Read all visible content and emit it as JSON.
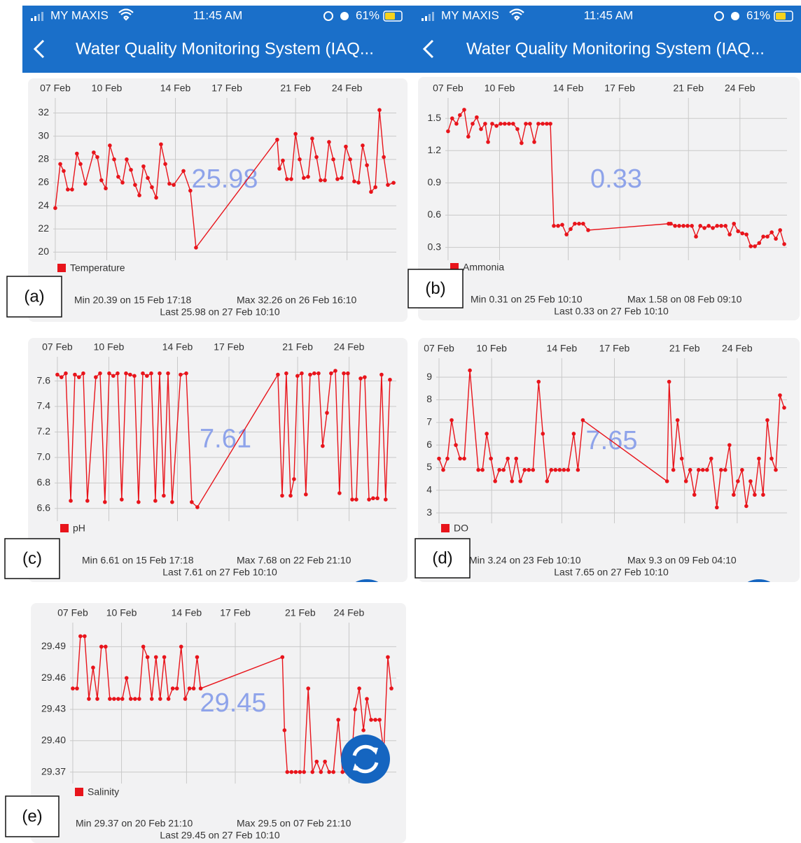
{
  "screens": [
    {
      "status": {
        "carrier": "MY MAXIS",
        "time": "11:45 AM",
        "battery": "61%"
      },
      "title": "Water Quality Monitoring System (IAQ..."
    },
    {
      "status": {
        "carrier": "MY MAXIS",
        "time": "11:45 AM",
        "battery": "61%"
      },
      "title": "Water Quality Monitoring System (IAQ..."
    }
  ],
  "panel_labels": [
    "(a)",
    "(b)",
    "(c)",
    "(d)",
    "(e)"
  ],
  "chart_data": [
    {
      "type": "line",
      "grid": true,
      "x": [
        7.0,
        7.29,
        7.49,
        7.73,
        7.98,
        8.26,
        8.47,
        8.75,
        9.24,
        9.45,
        9.69,
        9.94,
        10.18,
        10.43,
        10.67,
        10.92,
        11.16,
        11.41,
        11.65,
        11.9,
        12.14,
        12.39,
        12.63,
        12.88,
        13.16,
        13.41,
        13.65,
        13.9,
        14.47,
        14.87,
        15.2,
        19.93,
        20.06,
        20.26,
        20.5,
        20.75,
        21.0,
        21.24,
        21.48,
        21.73,
        21.97,
        22.22,
        22.46,
        22.71,
        22.95,
        23.2,
        23.44,
        23.69,
        23.93,
        24.18,
        24.42,
        24.67,
        24.91,
        25.16,
        25.4,
        25.65,
        25.89,
        26.14,
        26.38,
        26.71
      ],
      "series": [
        {
          "name": "Temperature",
          "color": "#e8141b",
          "values": [
            23.8,
            27.6,
            27.0,
            25.4,
            25.4,
            28.5,
            27.6,
            25.9,
            28.6,
            28.2,
            26.2,
            25.5,
            29.2,
            28.0,
            26.5,
            26.0,
            28.0,
            27.1,
            25.8,
            24.9,
            27.4,
            26.4,
            25.6,
            24.7,
            29.3,
            27.6,
            25.9,
            25.8,
            27.0,
            25.3,
            20.39,
            29.7,
            27.2,
            27.9,
            26.3,
            26.3,
            30.2,
            28.0,
            26.4,
            26.5,
            29.8,
            28.2,
            26.2,
            26.2,
            29.5,
            28.0,
            26.3,
            26.4,
            29.1,
            28.0,
            26.1,
            26.0,
            29.2,
            27.5,
            25.2,
            25.6,
            32.26,
            28.2,
            25.8,
            25.98
          ]
        }
      ],
      "xlim": [
        6.88,
        26.87
      ],
      "xticks": [
        {
          "value": 7,
          "label": "07 Feb"
        },
        {
          "value": 10,
          "label": "10 Feb"
        },
        {
          "value": 14,
          "label": "14 Feb"
        },
        {
          "value": 17,
          "label": "17 Feb"
        },
        {
          "value": 21,
          "label": "21 Feb"
        },
        {
          "value": 24,
          "label": "24 Feb"
        }
      ],
      "ylim": [
        19.3,
        33.3
      ],
      "yticks": [
        20,
        22,
        24,
        26,
        28,
        30,
        32
      ],
      "current": 25.98,
      "stats": {
        "min": "Min 20.39 on 15 Feb 17:18",
        "max": "Max 32.26 on 26 Feb 16:10",
        "last": "Last 25.98 on 27 Feb 10:10"
      }
    },
    {
      "type": "line",
      "grid": true,
      "x": [
        7.0,
        7.24,
        7.49,
        7.69,
        7.94,
        8.18,
        8.43,
        8.67,
        8.92,
        9.16,
        9.33,
        9.57,
        9.82,
        10.06,
        10.3,
        10.55,
        10.79,
        11.04,
        11.28,
        11.53,
        11.77,
        12.02,
        12.26,
        12.51,
        12.75,
        12.96,
        13.16,
        13.41,
        13.65,
        13.9,
        14.14,
        14.38,
        14.63,
        14.87,
        15.16,
        19.85,
        19.97,
        20.22,
        20.46,
        20.71,
        20.95,
        21.2,
        21.44,
        21.69,
        21.93,
        22.18,
        22.42,
        22.67,
        22.91,
        23.16,
        23.4,
        23.65,
        23.89,
        24.14,
        24.38,
        24.63,
        24.87,
        25.12,
        25.36,
        25.6,
        25.85,
        26.09,
        26.34,
        26.58
      ],
      "series": [
        {
          "name": "Ammonia",
          "color": "#e8141b",
          "values": [
            1.38,
            1.5,
            1.45,
            1.53,
            1.58,
            1.33,
            1.45,
            1.51,
            1.4,
            1.45,
            1.28,
            1.45,
            1.43,
            1.45,
            1.45,
            1.45,
            1.45,
            1.4,
            1.27,
            1.45,
            1.45,
            1.28,
            1.45,
            1.45,
            1.45,
            1.45,
            0.5,
            0.5,
            0.51,
            0.42,
            0.47,
            0.52,
            0.52,
            0.52,
            0.46,
            0.52,
            0.52,
            0.5,
            0.5,
            0.5,
            0.5,
            0.5,
            0.4,
            0.5,
            0.48,
            0.5,
            0.48,
            0.5,
            0.5,
            0.5,
            0.42,
            0.52,
            0.45,
            0.43,
            0.42,
            0.31,
            0.31,
            0.34,
            0.4,
            0.4,
            0.44,
            0.38,
            0.46,
            0.33
          ]
        }
      ],
      "xlim": [
        6.84,
        26.74
      ],
      "xticks": [
        {
          "value": 7,
          "label": "07 Feb"
        },
        {
          "value": 10,
          "label": "10 Feb"
        },
        {
          "value": 14,
          "label": "14 Feb"
        },
        {
          "value": 17,
          "label": "17 Feb"
        },
        {
          "value": 21,
          "label": "21 Feb"
        },
        {
          "value": 24,
          "label": "24 Feb"
        }
      ],
      "ylim": [
        0.18,
        1.69
      ],
      "yticks": [
        0.3,
        0.6,
        0.9,
        1.2,
        1.5
      ],
      "current": 0.33,
      "stats": {
        "min": "Min 0.31 on 25 Feb 10:10",
        "max": "Max 1.58 on 08 Feb 09:10",
        "last": "Last 0.33 on 27 Feb 10:10"
      }
    },
    {
      "type": "line",
      "grid": true,
      "x": [
        7.0,
        7.24,
        7.49,
        7.78,
        8.02,
        8.26,
        8.51,
        8.75,
        9.24,
        9.49,
        9.77,
        10.02,
        10.26,
        10.51,
        10.75,
        11.0,
        11.24,
        11.49,
        11.73,
        11.98,
        12.22,
        12.47,
        12.71,
        12.96,
        13.2,
        13.45,
        13.69,
        14.18,
        14.51,
        14.83,
        15.16,
        19.85,
        20.1,
        20.34,
        20.59,
        20.79,
        20.99,
        21.24,
        21.48,
        21.73,
        21.97,
        22.22,
        22.46,
        22.71,
        22.95,
        23.2,
        23.44,
        23.69,
        23.93,
        24.18,
        24.42,
        24.67,
        24.91,
        25.16,
        25.4,
        25.65,
        25.89,
        26.13,
        26.38
      ],
      "series": [
        {
          "name": "pH",
          "color": "#e8141b",
          "values": [
            7.65,
            7.63,
            7.66,
            6.66,
            7.65,
            7.63,
            7.66,
            6.66,
            7.63,
            7.66,
            6.65,
            7.66,
            7.64,
            7.66,
            6.67,
            7.66,
            7.65,
            7.64,
            6.65,
            7.66,
            7.64,
            7.66,
            6.66,
            7.66,
            6.7,
            7.66,
            6.65,
            7.65,
            7.66,
            6.65,
            6.61,
            7.65,
            6.7,
            7.66,
            6.7,
            6.83,
            7.64,
            7.66,
            6.71,
            7.65,
            7.66,
            7.66,
            7.09,
            7.35,
            7.66,
            7.68,
            6.72,
            7.66,
            7.66,
            6.67,
            6.67,
            7.62,
            7.63,
            6.67,
            6.68,
            6.68,
            7.65,
            6.67,
            7.61
          ]
        }
      ],
      "xlim": [
        6.84,
        26.75
      ],
      "xticks": [
        {
          "value": 7,
          "label": "07 Feb"
        },
        {
          "value": 10,
          "label": "10 Feb"
        },
        {
          "value": 14,
          "label": "14 Feb"
        },
        {
          "value": 17,
          "label": "17 Feb"
        },
        {
          "value": 21,
          "label": "21 Feb"
        },
        {
          "value": 24,
          "label": "24 Feb"
        }
      ],
      "ylim": [
        6.5,
        7.79
      ],
      "yticks": [
        6.6,
        6.8,
        {
          "value": 7,
          "label": "7.0"
        },
        7.2,
        7.4,
        7.6
      ],
      "current": 7.61,
      "stats": {
        "min": "Min 6.61 on 15 Feb 17:18",
        "max": "Max 7.68 on 22 Feb 21:10",
        "last": "Last 7.61 on 27 Feb 10:10"
      }
    },
    {
      "type": "line",
      "grid": true,
      "x": [
        7,
        7.24,
        7.48,
        7.72,
        7.96,
        8.2,
        8.44,
        8.76,
        9.24,
        9.48,
        9.72,
        9.96,
        10.2,
        10.44,
        10.68,
        10.92,
        11.16,
        11.4,
        11.64,
        11.88,
        12.12,
        12.36,
        12.68,
        12.92,
        13.16,
        13.4,
        13.64,
        13.88,
        14.12,
        14.36,
        14.68,
        14.92,
        15.2,
        20.0,
        20.12,
        20.36,
        20.6,
        20.84,
        21.08,
        21.32,
        21.56,
        21.8,
        22.04,
        22.28,
        22.52,
        22.84,
        23.08,
        23.32,
        23.56,
        23.8,
        24.04,
        24.28,
        24.52,
        24.76,
        25.0,
        25.24,
        25.48,
        25.72,
        25.96,
        26.2,
        26.44,
        26.68
      ],
      "series": [
        {
          "name": "DO",
          "color": "#e8141b",
          "values": [
            5.4,
            4.9,
            5.4,
            7.1,
            6.0,
            5.4,
            5.4,
            9.3,
            4.9,
            4.9,
            6.5,
            5.4,
            4.4,
            4.9,
            4.9,
            5.4,
            4.4,
            5.4,
            4.4,
            4.9,
            4.9,
            4.9,
            8.8,
            6.5,
            4.4,
            4.9,
            4.9,
            4.9,
            4.9,
            4.9,
            6.5,
            4.9,
            7.1,
            4.4,
            8.8,
            4.9,
            7.1,
            5.4,
            4.4,
            4.9,
            3.8,
            4.9,
            4.9,
            4.9,
            5.4,
            3.24,
            4.9,
            4.9,
            6.0,
            3.8,
            4.4,
            4.9,
            3.3,
            4.4,
            3.8,
            5.4,
            3.8,
            7.1,
            5.4,
            4.9,
            8.2,
            7.65
          ]
        }
      ],
      "xlim": [
        6.84,
        26.84
      ],
      "xticks": [
        {
          "value": 7,
          "label": "07 Feb"
        },
        {
          "value": 10,
          "label": "10 Feb"
        },
        {
          "value": 14,
          "label": "14 Feb"
        },
        {
          "value": 17,
          "label": "17 Feb"
        },
        {
          "value": 21,
          "label": "21 Feb"
        },
        {
          "value": 24,
          "label": "24 Feb"
        }
      ],
      "ylim": [
        2.54,
        9.84
      ],
      "yticks": [
        3,
        4,
        5,
        6,
        7,
        8,
        9
      ],
      "current": 7.65,
      "stats": {
        "min": "Min 3.24 on 23 Feb 10:10",
        "max": "Max 9.3 on 09 Feb 04:10",
        "last": "Last 7.65 on 27 Feb 10:10"
      }
    },
    {
      "type": "line",
      "grid": true,
      "x": [
        7,
        7.26,
        7.47,
        7.73,
        7.99,
        8.25,
        8.51,
        8.76,
        9.02,
        9.28,
        9.54,
        9.8,
        10.05,
        10.31,
        10.57,
        10.83,
        11.09,
        11.34,
        11.6,
        11.86,
        12.12,
        12.38,
        12.63,
        12.89,
        13.15,
        13.41,
        13.67,
        13.92,
        14.18,
        14.44,
        14.65,
        14.87,
        19.9,
        20.03,
        20.2,
        20.46,
        20.72,
        20.98,
        21.23,
        21.49,
        21.75,
        22.01,
        22.27,
        22.52,
        22.78,
        23.04,
        23.34,
        23.6,
        23.86,
        24.11,
        24.37,
        24.63,
        24.89,
        25.1,
        25.36,
        25.62,
        25.88,
        26.14,
        26.39,
        26.61
      ],
      "series": [
        {
          "name": "Salinity",
          "color": "#e8141b",
          "values": [
            29.45,
            29.45,
            29.5,
            29.5,
            29.44,
            29.47,
            29.44,
            29.49,
            29.49,
            29.44,
            29.44,
            29.44,
            29.44,
            29.46,
            29.44,
            29.44,
            29.44,
            29.49,
            29.48,
            29.44,
            29.48,
            29.44,
            29.48,
            29.44,
            29.45,
            29.45,
            29.49,
            29.44,
            29.45,
            29.45,
            29.48,
            29.45,
            29.48,
            29.41,
            29.37,
            29.37,
            29.37,
            29.37,
            29.37,
            29.45,
            29.37,
            29.38,
            29.37,
            29.38,
            29.37,
            29.37,
            29.42,
            29.37,
            29.37,
            29.37,
            29.43,
            29.45,
            29.41,
            29.44,
            29.42,
            29.42,
            29.42,
            29.39,
            29.48,
            29.45
          ]
        }
      ],
      "xlim": [
        6.83,
        26.91
      ],
      "xticks": [
        {
          "value": 7,
          "label": "07 Feb"
        },
        {
          "value": 10,
          "label": "10 Feb"
        },
        {
          "value": 14,
          "label": "14 Feb"
        },
        {
          "value": 17,
          "label": "17 Feb"
        },
        {
          "value": 21,
          "label": "21 Feb"
        },
        {
          "value": 24,
          "label": "24 Feb"
        }
      ],
      "ylim": [
        29.359,
        29.513
      ],
      "yticks": [
        29.37,
        {
          "value": 29.4,
          "label": "29.40"
        },
        29.43,
        29.46,
        29.49
      ],
      "current": 29.45,
      "stats": {
        "min": "Min 29.37 on 20 Feb 21:10",
        "max": "Max 29.5 on 07 Feb 21:10",
        "last": "Last 29.45 on 27 Feb 10:10"
      }
    }
  ]
}
